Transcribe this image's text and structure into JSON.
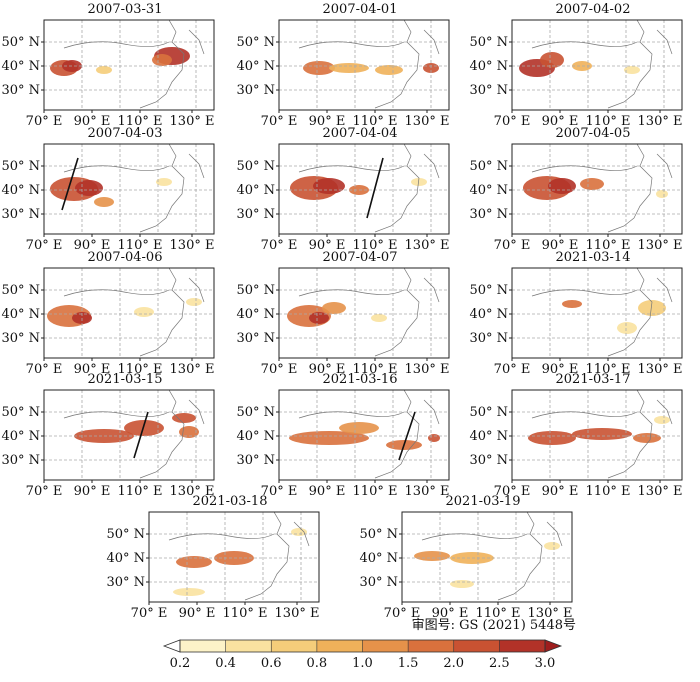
{
  "figure": {
    "panels": [
      {
        "date": "2007-03-31"
      },
      {
        "date": "2007-04-01"
      },
      {
        "date": "2007-04-02"
      },
      {
        "date": "2007-04-03"
      },
      {
        "date": "2007-04-04"
      },
      {
        "date": "2007-04-05"
      },
      {
        "date": "2007-04-06"
      },
      {
        "date": "2007-04-07"
      },
      {
        "date": "2021-03-14"
      },
      {
        "date": "2021-03-15"
      },
      {
        "date": "2021-03-16"
      },
      {
        "date": "2021-03-17"
      },
      {
        "date": "2021-03-18"
      },
      {
        "date": "2021-03-19"
      }
    ],
    "lat_labels": [
      "50° N",
      "40° N",
      "30° N"
    ],
    "lon_labels": [
      "70° E",
      "90° E",
      "110° E",
      "130° E"
    ],
    "map_notice": "审图号: GS (2021) 5448号",
    "colorbar": {
      "ticks": [
        "0.2",
        "0.4",
        "0.6",
        "0.8",
        "1.0",
        "1.5",
        "2.0",
        "2.5",
        "3.0"
      ],
      "colors": [
        "#fdf3c8",
        "#f9e2a0",
        "#f5cd7a",
        "#efb15a",
        "#e6924a",
        "#d9713d",
        "#c95232",
        "#b23228"
      ]
    }
  }
}
